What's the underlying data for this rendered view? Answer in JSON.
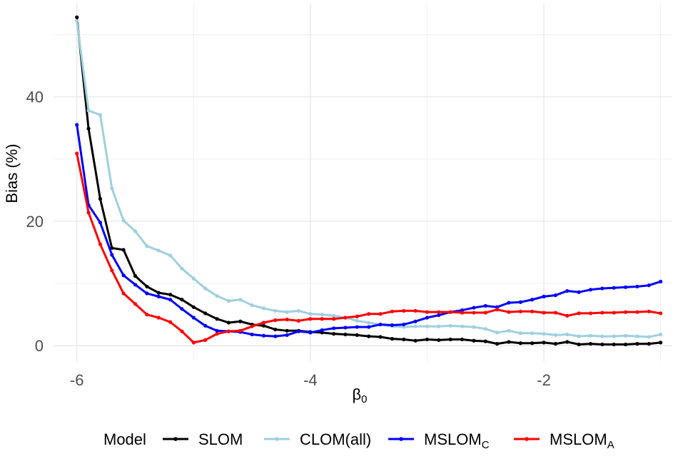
{
  "chart_data": {
    "type": "line",
    "xlabel": "β",
    "xlabel_sub": "0",
    "ylabel": "Bias (%)",
    "xlim": [
      -6.2,
      -0.9
    ],
    "ylim": [
      -2.5,
      55
    ],
    "x_ticks": [
      -6,
      -4,
      -2
    ],
    "x_tick_labels": [
      "-6",
      "-4",
      "-2"
    ],
    "y_ticks": [
      0,
      20,
      40
    ],
    "y_tick_labels": [
      "0",
      "20",
      "40"
    ],
    "grid": true,
    "legend": {
      "title": "Model",
      "position": "bottom"
    },
    "x": [
      -6.0,
      -5.9,
      -5.8,
      -5.7,
      -5.6,
      -5.5,
      -5.4,
      -5.3,
      -5.2,
      -5.1,
      -5.0,
      -4.9,
      -4.8,
      -4.7,
      -4.6,
      -4.5,
      -4.4,
      -4.3,
      -4.2,
      -4.1,
      -4.0,
      -3.9,
      -3.8,
      -3.7,
      -3.6,
      -3.5,
      -3.4,
      -3.3,
      -3.2,
      -3.1,
      -3.0,
      -2.9,
      -2.8,
      -2.7,
      -2.6,
      -2.5,
      -2.4,
      -2.3,
      -2.2,
      -2.1,
      -2.0,
      -1.9,
      -1.8,
      -1.7,
      -1.6,
      -1.5,
      -1.4,
      -1.3,
      -1.2,
      -1.1,
      -1.0
    ],
    "series": [
      {
        "name": "SLOM",
        "label_main": "SLOM",
        "label_sub": "",
        "color": "#000000",
        "values": [
          52.8,
          34.9,
          23.6,
          15.7,
          15.4,
          11.2,
          9.5,
          8.5,
          8.2,
          7.4,
          6.2,
          5.2,
          4.3,
          3.7,
          3.9,
          3.4,
          3.2,
          2.6,
          2.4,
          2.4,
          2.2,
          2.1,
          1.9,
          1.8,
          1.7,
          1.5,
          1.4,
          1.1,
          1.0,
          0.8,
          1.0,
          0.9,
          1.0,
          1.0,
          0.8,
          0.7,
          0.3,
          0.6,
          0.4,
          0.4,
          0.5,
          0.3,
          0.6,
          0.2,
          0.3,
          0.2,
          0.2,
          0.2,
          0.3,
          0.3,
          0.5
        ]
      },
      {
        "name": "CLOM(all)",
        "label_main": "CLOM(all)",
        "label_sub": "",
        "color": "#9ed0df",
        "values": [
          52.2,
          37.8,
          37.1,
          25.3,
          20.1,
          18.4,
          16.0,
          15.3,
          14.5,
          12.4,
          10.8,
          9.2,
          8.0,
          7.2,
          7.4,
          6.5,
          6.0,
          5.6,
          5.4,
          5.6,
          5.1,
          5.0,
          4.8,
          4.5,
          4.0,
          3.7,
          3.4,
          3.1,
          3.0,
          3.1,
          3.1,
          3.1,
          3.2,
          3.1,
          3.0,
          2.7,
          2.1,
          2.4,
          2.0,
          2.0,
          1.9,
          1.7,
          1.8,
          1.5,
          1.6,
          1.5,
          1.5,
          1.6,
          1.5,
          1.4,
          1.8
        ]
      },
      {
        "name": "MSLOMC",
        "label_main": "MSLOM",
        "label_sub": "C",
        "color": "#0000ff",
        "values": [
          35.5,
          22.6,
          19.8,
          14.6,
          11.3,
          9.8,
          8.4,
          7.9,
          7.4,
          5.9,
          4.5,
          3.2,
          2.4,
          2.3,
          2.2,
          1.8,
          1.6,
          1.5,
          1.7,
          2.3,
          2.1,
          2.5,
          2.8,
          2.9,
          3.0,
          3.0,
          3.4,
          3.3,
          3.4,
          3.9,
          4.5,
          4.9,
          5.4,
          5.7,
          6.1,
          6.4,
          6.2,
          6.9,
          7.0,
          7.4,
          7.9,
          8.1,
          8.8,
          8.6,
          9.0,
          9.2,
          9.3,
          9.4,
          9.5,
          9.7,
          10.3
        ]
      },
      {
        "name": "MSLOMA",
        "label_main": "MSLOM",
        "label_sub": "A",
        "color": "#ff0000",
        "values": [
          30.9,
          21.4,
          16.3,
          12.1,
          8.4,
          6.7,
          5.0,
          4.5,
          3.8,
          2.3,
          0.5,
          0.9,
          1.9,
          2.3,
          2.4,
          3.1,
          3.7,
          4.1,
          4.2,
          4.0,
          4.3,
          4.3,
          4.3,
          4.5,
          4.7,
          5.1,
          5.1,
          5.5,
          5.6,
          5.6,
          5.4,
          5.4,
          5.4,
          5.3,
          5.3,
          5.3,
          5.8,
          5.4,
          5.5,
          5.5,
          5.3,
          5.3,
          4.8,
          5.2,
          5.2,
          5.3,
          5.3,
          5.4,
          5.4,
          5.5,
          5.2
        ]
      }
    ]
  }
}
